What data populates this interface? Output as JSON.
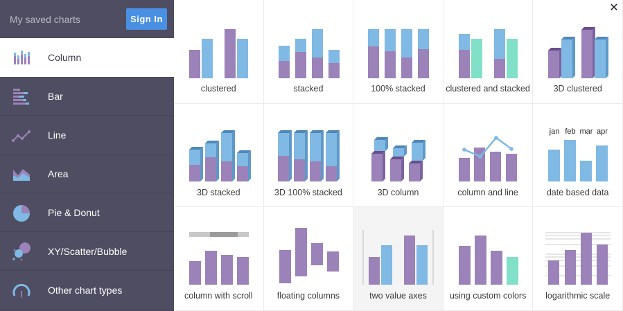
{
  "sidebar": {
    "title": "My saved charts",
    "signin_label": "Sign In",
    "items": [
      {
        "label": "Column",
        "icon": "column-chart-icon"
      },
      {
        "label": "Bar",
        "icon": "bar-chart-icon"
      },
      {
        "label": "Line",
        "icon": "line-chart-icon"
      },
      {
        "label": "Area",
        "icon": "area-chart-icon"
      },
      {
        "label": "Pie & Donut",
        "icon": "pie-chart-icon"
      },
      {
        "label": "XY/Scatter/Bubble",
        "icon": "scatter-bubble-icon"
      },
      {
        "label": "Other chart types",
        "icon": "gauge-icon"
      }
    ]
  },
  "close_icon": "close-icon",
  "colors": {
    "purple": "#9b82b8",
    "blue": "#7fb9e4",
    "teal": "#80e0c8",
    "sidebar_bg": "#4f4d61",
    "accent": "#4a90e2"
  },
  "templates": [
    {
      "label": "clustered",
      "icon": "clustered-column-thumbnail"
    },
    {
      "label": "stacked",
      "icon": "stacked-column-thumbnail"
    },
    {
      "label": "100% stacked",
      "icon": "percent-stacked-column-thumbnail"
    },
    {
      "label": "clustered and stacked",
      "icon": "clustered-stacked-column-thumbnail"
    },
    {
      "label": "3D clustered",
      "icon": "3d-clustered-column-thumbnail"
    },
    {
      "label": "3D stacked",
      "icon": "3d-stacked-column-thumbnail"
    },
    {
      "label": "3D 100% stacked",
      "icon": "3d-percent-stacked-column-thumbnail"
    },
    {
      "label": "3D column",
      "icon": "3d-column-thumbnail"
    },
    {
      "label": "column and line",
      "icon": "column-and-line-thumbnail"
    },
    {
      "label": "date based data",
      "icon": "date-based-column-thumbnail",
      "months": [
        "jan",
        "feb",
        "mar",
        "apr"
      ]
    },
    {
      "label": "column with scroll",
      "icon": "column-with-scroll-thumbnail"
    },
    {
      "label": "floating columns",
      "icon": "floating-columns-thumbnail"
    },
    {
      "label": "two value axes",
      "icon": "two-value-axes-thumbnail"
    },
    {
      "label": "using custom colors",
      "icon": "custom-colors-column-thumbnail"
    },
    {
      "label": "logarithmic scale",
      "icon": "logarithmic-scale-thumbnail"
    }
  ]
}
